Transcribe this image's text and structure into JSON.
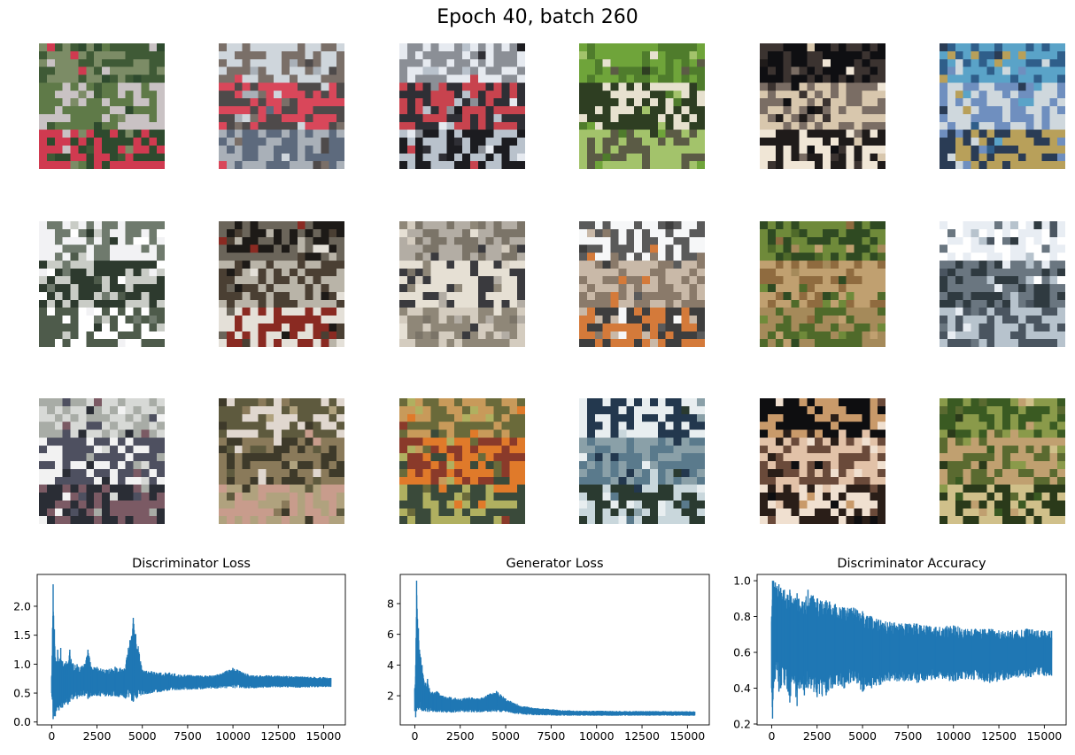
{
  "suptitle": "Epoch 40, batch 260",
  "samples": [
    {
      "id": "sample-r1c1",
      "colors": [
        "#7c8c66",
        "#3f5a36",
        "#5f7a48",
        "#c9c2c4",
        "#d03a50",
        "#2e4a2e"
      ]
    },
    {
      "id": "sample-r1c2",
      "colors": [
        "#cfd6dc",
        "#7a6f68",
        "#4e4a4a",
        "#d9475a",
        "#a9b0b8",
        "#5d6a7d"
      ]
    },
    {
      "id": "sample-r1c3",
      "colors": [
        "#e6eaf0",
        "#8b8f96",
        "#2f2f35",
        "#c8434e",
        "#1c1c20",
        "#b9c2cc"
      ]
    },
    {
      "id": "sample-r1c4",
      "colors": [
        "#6fa43a",
        "#4f7c2c",
        "#e7e1cf",
        "#2e3e22",
        "#a3c36b",
        "#5b5b45"
      ]
    },
    {
      "id": "sample-r1c5",
      "colors": [
        "#0f0f12",
        "#3b3330",
        "#d8c7ad",
        "#7a6d64",
        "#f0e6d6",
        "#1f1b1a"
      ]
    },
    {
      "id": "sample-r1c6",
      "colors": [
        "#5aa3c8",
        "#2f5e8a",
        "#6f8fbf",
        "#cfd8dd",
        "#b8a05a",
        "#2a3c55"
      ]
    },
    {
      "id": "sample-r2c1",
      "colors": [
        "#f2f2f4",
        "#6f7a6d",
        "#2d3a2e",
        "#c9ccc6",
        "#4e5b4b",
        "#ffffff"
      ]
    },
    {
      "id": "sample-r2c2",
      "colors": [
        "#1d1a17",
        "#6b655a",
        "#b9b4a8",
        "#4a3f33",
        "#e4e0d8",
        "#8a2a22"
      ]
    },
    {
      "id": "sample-r2c3",
      "colors": [
        "#b3ada4",
        "#7b7468",
        "#e6e0d4",
        "#3a3a3e",
        "#8f8778",
        "#d4ccbf"
      ]
    },
    {
      "id": "sample-r2c4",
      "colors": [
        "#f6f7f8",
        "#5a5a5a",
        "#8a7a6a",
        "#c9b9a8",
        "#d47a3a",
        "#3e3e3e"
      ]
    },
    {
      "id": "sample-r2c5",
      "colors": [
        "#2f4a22",
        "#6f8a3a",
        "#c0a070",
        "#8f6b3f",
        "#4f6a2a",
        "#a58a5a"
      ]
    },
    {
      "id": "sample-r2c6",
      "colors": [
        "#e8edf3",
        "#ffffff",
        "#6a7680",
        "#2f3a40",
        "#b7c3cd",
        "#4a5560"
      ]
    },
    {
      "id": "sample-r3c1",
      "colors": [
        "#d7d9d6",
        "#a8aca6",
        "#4e5060",
        "#f2f2f2",
        "#2a2d35",
        "#7b5a64"
      ]
    },
    {
      "id": "sample-r3c2",
      "colors": [
        "#5e5a3e",
        "#e0d7cf",
        "#8a7a5a",
        "#3e3a2a",
        "#b0a27e",
        "#c89c8c"
      ]
    },
    {
      "id": "sample-r3c3",
      "colors": [
        "#6a6a3a",
        "#c89a5a",
        "#e07a2a",
        "#8a3a2a",
        "#3a4a3a",
        "#b0b060"
      ]
    },
    {
      "id": "sample-r3c4",
      "colors": [
        "#23384e",
        "#e8eef0",
        "#5a7a8c",
        "#8aa0a8",
        "#2a3a30",
        "#c9d7dc"
      ]
    },
    {
      "id": "sample-r3c5",
      "colors": [
        "#0e0e10",
        "#c99a6a",
        "#e2c2a8",
        "#6a4a3a",
        "#f0e0d0",
        "#2a1e18"
      ]
    },
    {
      "id": "sample-r3c6",
      "colors": [
        "#3a5a22",
        "#8a9a4a",
        "#c0a070",
        "#5a6a30",
        "#d0c08a",
        "#2a3a1a"
      ]
    }
  ],
  "chart_data": [
    {
      "type": "line",
      "title": "Discriminator Loss",
      "xlabel": "",
      "ylabel": "",
      "xlim": [
        -800,
        16200
      ],
      "ylim": [
        -0.05,
        2.55
      ],
      "xticks": [
        0,
        2500,
        5000,
        7500,
        10000,
        12500,
        15000
      ],
      "xtick_labels": [
        "0",
        "2500",
        "5000",
        "7500",
        "10000",
        "12500",
        "15000"
      ],
      "yticks": [
        0.0,
        0.5,
        1.0,
        1.5,
        2.0
      ],
      "ytick_labels": [
        "0.0",
        "0.5",
        "1.0",
        "1.5",
        "2.0"
      ],
      "grid": false,
      "color": "#1f77b4",
      "series": [
        {
          "x": [
            0,
            80,
            150,
            200,
            260,
            330,
            400,
            500,
            600,
            700,
            800,
            900,
            1000,
            1200,
            1400,
            1600,
            1800,
            2000,
            2200,
            2500,
            3000,
            3500,
            4000,
            4500,
            5000,
            5500,
            6000,
            6500,
            7000,
            8000,
            9000,
            10000,
            11000,
            12000,
            13000,
            14000,
            15000,
            15400
          ],
          "min": [
            0.5,
            0.05,
            0.1,
            0.1,
            0.2,
            0.25,
            0.2,
            0.25,
            0.25,
            0.3,
            0.35,
            0.3,
            0.35,
            0.4,
            0.4,
            0.45,
            0.45,
            0.4,
            0.45,
            0.45,
            0.45,
            0.45,
            0.42,
            0.35,
            0.48,
            0.5,
            0.52,
            0.55,
            0.56,
            0.57,
            0.58,
            0.59,
            0.59,
            0.6,
            0.6,
            0.6,
            0.61,
            0.61
          ],
          "max": [
            0.8,
            2.38,
            1.6,
            1.1,
            1.05,
            1.25,
            1.05,
            1.28,
            1.05,
            1.0,
            1.05,
            1.0,
            1.25,
            1.0,
            1.0,
            0.95,
            1.0,
            1.25,
            0.95,
            0.95,
            0.9,
            0.95,
            0.92,
            1.8,
            0.9,
            0.88,
            0.85,
            0.85,
            0.82,
            0.8,
            0.8,
            0.93,
            0.8,
            0.8,
            0.79,
            0.78,
            0.77,
            0.76
          ]
        }
      ]
    },
    {
      "type": "line",
      "title": "Generator Loss",
      "xlabel": "",
      "ylabel": "",
      "xlim": [
        -800,
        16200
      ],
      "ylim": [
        0.1,
        9.9
      ],
      "xticks": [
        0,
        2500,
        5000,
        7500,
        10000,
        12500,
        15000
      ],
      "xtick_labels": [
        "0",
        "2500",
        "5000",
        "7500",
        "10000",
        "12500",
        "15000"
      ],
      "yticks": [
        2,
        4,
        6,
        8
      ],
      "ytick_labels": [
        "2",
        "4",
        "6",
        "8"
      ],
      "grid": false,
      "color": "#1f77b4",
      "series": [
        {
          "x": [
            0,
            50,
            100,
            150,
            200,
            260,
            330,
            400,
            500,
            600,
            700,
            800,
            1000,
            1200,
            1500,
            2000,
            2500,
            3000,
            3500,
            4000,
            4500,
            5000,
            5500,
            6000,
            6500,
            7000,
            8000,
            9000,
            10000,
            11000,
            12000,
            13000,
            14000,
            15000,
            15400
          ],
          "min": [
            1.0,
            0.6,
            1.0,
            1.2,
            1.1,
            1.2,
            1.1,
            1.0,
            1.0,
            1.0,
            0.95,
            0.95,
            0.95,
            0.95,
            0.95,
            0.9,
            0.95,
            0.95,
            0.95,
            0.95,
            0.95,
            0.95,
            0.85,
            0.8,
            0.75,
            0.75,
            0.72,
            0.72,
            0.72,
            0.72,
            0.72,
            0.72,
            0.72,
            0.72,
            0.72
          ],
          "max": [
            2.5,
            4.0,
            9.5,
            7.0,
            6.4,
            5.0,
            4.5,
            4.0,
            3.0,
            2.8,
            3.1,
            2.5,
            2.2,
            2.3,
            2.0,
            1.9,
            1.8,
            1.9,
            1.8,
            2.05,
            2.3,
            1.8,
            1.5,
            1.3,
            1.2,
            1.15,
            1.05,
            1.0,
            1.0,
            0.98,
            0.98,
            0.98,
            0.97,
            0.97,
            0.96
          ]
        }
      ]
    },
    {
      "type": "line",
      "title": "Discriminator Accuracy",
      "xlabel": "",
      "ylabel": "",
      "xlim": [
        -800,
        16200
      ],
      "ylim": [
        0.195,
        1.035
      ],
      "xticks": [
        0,
        2500,
        5000,
        7500,
        10000,
        12500,
        15000
      ],
      "xtick_labels": [
        "0",
        "2500",
        "5000",
        "7500",
        "10000",
        "12500",
        "15000"
      ],
      "yticks": [
        0.2,
        0.4,
        0.6,
        0.8,
        1.0
      ],
      "ytick_labels": [
        "0.2",
        "0.4",
        "0.6",
        "0.8",
        "1.0"
      ],
      "grid": false,
      "color": "#1f77b4",
      "series": [
        {
          "x": [
            0,
            50,
            100,
            200,
            300,
            400,
            500,
            700,
            900,
            1000,
            1200,
            1400,
            1500,
            1800,
            2000,
            2500,
            3000,
            3500,
            4000,
            4500,
            5000,
            5500,
            6000,
            6500,
            7000,
            8000,
            9000,
            10000,
            11000,
            12000,
            13000,
            14000,
            15000,
            15400
          ],
          "min": [
            0.4,
            0.23,
            0.4,
            0.45,
            0.5,
            0.38,
            0.4,
            0.42,
            0.38,
            0.32,
            0.45,
            0.3,
            0.4,
            0.36,
            0.4,
            0.35,
            0.36,
            0.42,
            0.4,
            0.44,
            0.38,
            0.4,
            0.42,
            0.44,
            0.44,
            0.43,
            0.45,
            0.44,
            0.45,
            0.43,
            0.45,
            0.46,
            0.47,
            0.47
          ],
          "max": [
            0.8,
            1.0,
            1.0,
            0.99,
            0.97,
            0.98,
            0.96,
            0.95,
            0.92,
            0.95,
            0.9,
            0.93,
            0.9,
            0.88,
            0.95,
            0.9,
            0.89,
            0.87,
            0.85,
            0.85,
            0.83,
            0.8,
            0.78,
            0.77,
            0.76,
            0.76,
            0.74,
            0.75,
            0.73,
            0.73,
            0.72,
            0.73,
            0.72,
            0.72
          ]
        }
      ]
    }
  ]
}
